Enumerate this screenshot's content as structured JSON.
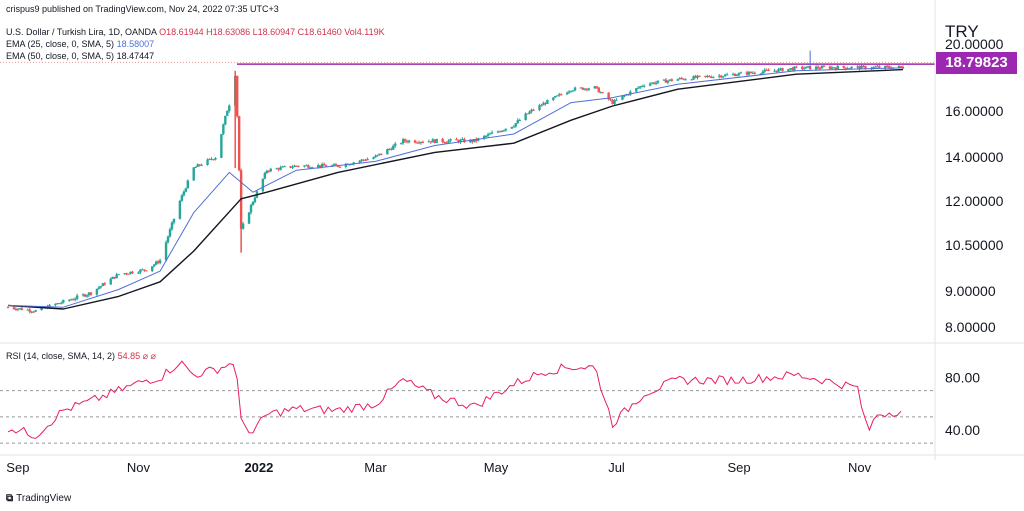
{
  "header": {
    "published": "crispus9 published on TradingView.com, Nov 24, 2022 07:35 UTC+3",
    "symbol_line": "U.S. Dollar / Turkish Lira, 1D, OANDA",
    "ohlc": "O18.61944 H18.63086 L18.60947 C18.61460 Vol4.119K",
    "ema25_label": "EMA (25, close, 0, SMA, 5)",
    "ema25_value": "18.58007",
    "ema50_label": "EMA (50, close, 0, SMA, 5)",
    "ema50_value": "18.47447",
    "rsi_label": "RSI (14, close, SMA, 14, 2)",
    "rsi_value": "54.85 ⌀ ⌀"
  },
  "currency": "TRY",
  "price_tag": "18.79823",
  "footer_brand": "TradingView",
  "colors": {
    "up": "#26a69a",
    "down": "#ef5350",
    "ema25": "#4f6fd8",
    "ema50": "#131722",
    "resistance": "#9c27b0",
    "rsi": "#e91e63",
    "price_tag_bg": "#9c27b0"
  },
  "chart_data": [
    {
      "type": "candlestick",
      "title": "U.S. Dollar / Turkish Lira, 1D, OANDA",
      "y_ticks": [
        "8.00000",
        "9.00000",
        "10.50000",
        "12.00000",
        "14.00000",
        "16.00000",
        "20.00000"
      ],
      "x_ticks": [
        "Sep",
        "Nov",
        "2022",
        "Mar",
        "May",
        "Jul",
        "Sep",
        "Nov"
      ],
      "ylim": [
        7.6,
        20.2
      ],
      "resistance_level": 18.79823,
      "close_series": [
        [
          "2021-08-27",
          8.55
        ],
        [
          "2021-09-10",
          8.45
        ],
        [
          "2021-09-24",
          8.7
        ],
        [
          "2021-10-08",
          8.95
        ],
        [
          "2021-10-22",
          9.55
        ],
        [
          "2021-11-05",
          9.7
        ],
        [
          "2021-11-12",
          10.0
        ],
        [
          "2021-11-22",
          12.0
        ],
        [
          "2021-11-29",
          13.5
        ],
        [
          "2021-12-10",
          14.0
        ],
        [
          "2021-12-17",
          16.4
        ],
        [
          "2021-12-20",
          18.2
        ],
        [
          "2021-12-23",
          11.0
        ],
        [
          "2021-12-29",
          12.0
        ],
        [
          "2022-01-05",
          13.4
        ],
        [
          "2022-01-20",
          13.6
        ],
        [
          "2022-02-10",
          13.6
        ],
        [
          "2022-03-01",
          14.0
        ],
        [
          "2022-03-15",
          14.7
        ],
        [
          "2022-03-31",
          14.7
        ],
        [
          "2022-04-20",
          14.7
        ],
        [
          "2022-05-10",
          15.4
        ],
        [
          "2022-05-26",
          16.5
        ],
        [
          "2022-06-08",
          17.3
        ],
        [
          "2022-06-20",
          17.4
        ],
        [
          "2022-06-29",
          16.5
        ],
        [
          "2022-07-15",
          17.6
        ],
        [
          "2022-08-01",
          17.9
        ],
        [
          "2022-08-31",
          18.2
        ],
        [
          "2022-09-30",
          18.55
        ],
        [
          "2022-10-14",
          18.6
        ],
        [
          "2022-10-31",
          18.6
        ],
        [
          "2022-11-23",
          18.61
        ]
      ],
      "ema25_series": [
        [
          "2021-08-27",
          8.6
        ],
        [
          "2021-09-24",
          8.55
        ],
        [
          "2021-10-22",
          9.05
        ],
        [
          "2021-11-12",
          9.65
        ],
        [
          "2021-11-29",
          11.6
        ],
        [
          "2021-12-17",
          13.3
        ],
        [
          "2021-12-29",
          12.4
        ],
        [
          "2022-01-20",
          13.4
        ],
        [
          "2022-03-01",
          13.8
        ],
        [
          "2022-03-31",
          14.5
        ],
        [
          "2022-05-10",
          15.0
        ],
        [
          "2022-06-08",
          16.5
        ],
        [
          "2022-06-29",
          16.8
        ],
        [
          "2022-08-01",
          17.6
        ],
        [
          "2022-09-30",
          18.4
        ],
        [
          "2022-11-23",
          18.58
        ]
      ],
      "ema50_series": [
        [
          "2021-08-27",
          8.6
        ],
        [
          "2021-09-24",
          8.5
        ],
        [
          "2021-10-22",
          8.85
        ],
        [
          "2021-11-12",
          9.3
        ],
        [
          "2021-11-29",
          10.3
        ],
        [
          "2021-12-23",
          12.1
        ],
        [
          "2022-01-05",
          12.4
        ],
        [
          "2022-02-10",
          13.3
        ],
        [
          "2022-03-31",
          14.2
        ],
        [
          "2022-05-10",
          14.6
        ],
        [
          "2022-06-08",
          15.6
        ],
        [
          "2022-06-29",
          16.3
        ],
        [
          "2022-08-01",
          17.3
        ],
        [
          "2022-09-30",
          18.2
        ],
        [
          "2022-11-23",
          18.47
        ]
      ]
    },
    {
      "type": "line",
      "title": "RSI (14, close, SMA, 14, 2)",
      "y_ticks": [
        "80.00",
        "40.00"
      ],
      "ylim": [
        28,
        100
      ],
      "reference_lines": [
        70,
        50,
        30
      ],
      "series": [
        {
          "values": [
            [
              "2021-08-27",
              42
            ],
            [
              "2021-09-10",
              36
            ],
            [
              "2021-09-24",
              55
            ],
            [
              "2021-10-08",
              62
            ],
            [
              "2021-10-22",
              70
            ],
            [
              "2021-11-05",
              78
            ],
            [
              "2021-11-12",
              80
            ],
            [
              "2021-11-22",
              92
            ],
            [
              "2021-11-29",
              82
            ],
            [
              "2021-12-10",
              86
            ],
            [
              "2021-12-17",
              90
            ],
            [
              "2021-12-20",
              93
            ],
            [
              "2021-12-23",
              46
            ],
            [
              "2021-12-29",
              38
            ],
            [
              "2022-01-05",
              52
            ],
            [
              "2022-01-20",
              56
            ],
            [
              "2022-02-10",
              55
            ],
            [
              "2022-03-01",
              60
            ],
            [
              "2022-03-15",
              78
            ],
            [
              "2022-03-31",
              66
            ],
            [
              "2022-04-20",
              58
            ],
            [
              "2022-05-10",
              75
            ],
            [
              "2022-05-26",
              85
            ],
            [
              "2022-06-08",
              88
            ],
            [
              "2022-06-20",
              88
            ],
            [
              "2022-06-29",
              45
            ],
            [
              "2022-07-15",
              68
            ],
            [
              "2022-08-01",
              78
            ],
            [
              "2022-08-31",
              78
            ],
            [
              "2022-09-30",
              82
            ],
            [
              "2022-10-14",
              78
            ],
            [
              "2022-10-31",
              72
            ],
            [
              "2022-11-05",
              38
            ],
            [
              "2022-11-10",
              52
            ],
            [
              "2022-11-23",
              55
            ]
          ]
        }
      ]
    }
  ]
}
